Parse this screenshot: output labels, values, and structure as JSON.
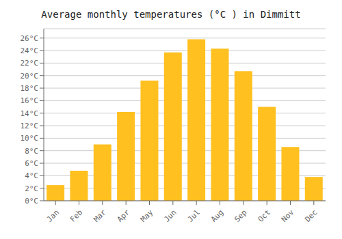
{
  "chart_data": {
    "type": "bar",
    "title": "Average monthly temperatures (°C ) in Dimmitt",
    "categories": [
      "Jan",
      "Feb",
      "Mar",
      "Apr",
      "May",
      "Jun",
      "Jul",
      "Aug",
      "Sep",
      "Oct",
      "Nov",
      "Dec"
    ],
    "values": [
      2.5,
      4.8,
      9.0,
      14.2,
      19.2,
      23.7,
      25.8,
      24.3,
      20.7,
      15.0,
      8.6,
      3.8
    ],
    "color": "#FFC020",
    "ylim": [
      0,
      27.5
    ],
    "yticks": [
      {
        "value": 0,
        "label": "0°C"
      },
      {
        "value": 2,
        "label": "2°C"
      },
      {
        "value": 4,
        "label": "4°C"
      },
      {
        "value": 6,
        "label": "6°C"
      },
      {
        "value": 8,
        "label": "8°C"
      },
      {
        "value": 10,
        "label": "10°C"
      },
      {
        "value": 12,
        "label": "12°C"
      },
      {
        "value": 14,
        "label": "14°C"
      },
      {
        "value": 16,
        "label": "16°C"
      },
      {
        "value": 18,
        "label": "18°C"
      },
      {
        "value": 20,
        "label": "20°C"
      },
      {
        "value": 22,
        "label": "22°C"
      },
      {
        "value": 24,
        "label": "24°C"
      },
      {
        "value": 26,
        "label": "26°C"
      }
    ],
    "grid": true
  }
}
